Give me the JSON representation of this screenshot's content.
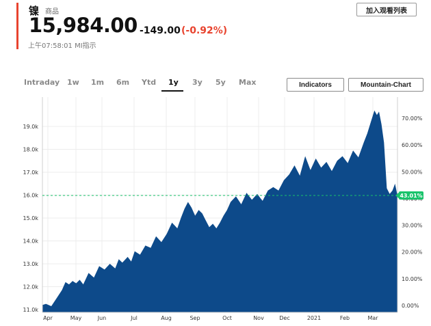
{
  "quote": {
    "name": "镍",
    "category": "商品",
    "price": "15,984.00",
    "change": "-149.00",
    "change_pct": "(-0.92%)",
    "timestamp": "上午07:58:01 MI指示",
    "watchlist_label": "加入观看列表"
  },
  "colors": {
    "accent": "#e8432e",
    "area": "#0d4a8a",
    "badge": "#19c36b",
    "baseline": "#19c36b"
  },
  "range_tabs": [
    {
      "label": "Intraday"
    },
    {
      "label": "1w"
    },
    {
      "label": "1m"
    },
    {
      "label": "6m"
    },
    {
      "label": "Ytd"
    },
    {
      "label": "1y"
    },
    {
      "label": "3y"
    },
    {
      "label": "5y"
    },
    {
      "label": "Max"
    }
  ],
  "active_range": "1y",
  "tools": {
    "indicators": "Indicators",
    "mountain": "Mountain-Chart"
  },
  "chart_data": {
    "type": "area",
    "title": "",
    "xlabel": "",
    "ylabel": "",
    "ylim": [
      11000,
      19800
    ],
    "y_ticks": [
      "11.0k",
      "12.0k",
      "13.0k",
      "14.0k",
      "15.0k",
      "16.0k",
      "17.0k",
      "18.0k",
      "19.0k"
    ],
    "y_tick_values": [
      11000,
      12000,
      13000,
      14000,
      15000,
      16000,
      17000,
      18000,
      19000
    ],
    "pct_ticks": [
      "0.00%",
      "10.00%",
      "20.00%",
      "30.00%",
      "40.00%",
      "50.00%",
      "60.00%",
      "70.00%"
    ],
    "pct_tick_values": [
      0,
      10,
      20,
      30,
      40,
      50,
      60,
      70
    ],
    "x_ticks": [
      "Apr",
      "May",
      "Jun",
      "Jul",
      "Aug",
      "Sep",
      "Oct",
      "Nov",
      "Dec",
      "2021",
      "Feb",
      "Mar"
    ],
    "reference_value": 15984,
    "reference_label": "43.01%",
    "grid": true,
    "series": [
      {
        "x": [
          0,
          0.01,
          0.025,
          0.04,
          0.055,
          0.065,
          0.075,
          0.085,
          0.095,
          0.105,
          0.115,
          0.13,
          0.145,
          0.16,
          0.175,
          0.19,
          0.205,
          0.215,
          0.225,
          0.24,
          0.25,
          0.26,
          0.275,
          0.29,
          0.305,
          0.32,
          0.335,
          0.35,
          0.365,
          0.38,
          0.39,
          0.4,
          0.41,
          0.42,
          0.43,
          0.44,
          0.45,
          0.46,
          0.47,
          0.48,
          0.49,
          0.5,
          0.51,
          0.52,
          0.53,
          0.545,
          0.56,
          0.575,
          0.59,
          0.605,
          0.62,
          0.635,
          0.65,
          0.665,
          0.68,
          0.695,
          0.71,
          0.725,
          0.74,
          0.755,
          0.77,
          0.785,
          0.8,
          0.815,
          0.83,
          0.845,
          0.86,
          0.875,
          0.89,
          0.905,
          0.915,
          0.925,
          0.935,
          0.942,
          0.948,
          0.955,
          0.962,
          0.97,
          0.978,
          0.986,
          0.993,
          1.0
        ],
        "values": [
          11200,
          11250,
          11150,
          11500,
          11850,
          12200,
          12100,
          12250,
          12150,
          12300,
          12100,
          12600,
          12400,
          12900,
          12750,
          13000,
          12800,
          13200,
          13050,
          13300,
          13100,
          13550,
          13400,
          13800,
          13700,
          14200,
          13950,
          14300,
          14800,
          14550,
          15000,
          15400,
          15700,
          15450,
          15100,
          15350,
          15200,
          14900,
          14600,
          14750,
          14550,
          14800,
          15100,
          15350,
          15700,
          15950,
          15600,
          16100,
          15800,
          16050,
          15750,
          16200,
          16350,
          16200,
          16650,
          16900,
          17300,
          16850,
          17700,
          17100,
          17600,
          17200,
          17450,
          17050,
          17500,
          17700,
          17400,
          17950,
          17650,
          18300,
          18700,
          19200,
          19700,
          19500,
          19650,
          19100,
          18300,
          16300,
          16050,
          16200,
          16500,
          15984
        ]
      }
    ]
  }
}
